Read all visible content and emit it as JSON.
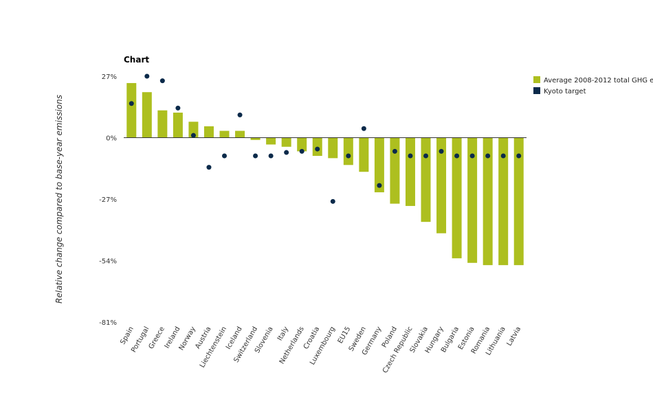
{
  "chart_data": {
    "type": "bar",
    "title": "Chart",
    "ylabel": "Relative change compared to base-year emissions",
    "xlabel": "",
    "ylim": [
      -81,
      27
    ],
    "yticks": [
      27,
      0,
      -27,
      -54,
      -81
    ],
    "ytick_labels": [
      "27%",
      "0%",
      "-27%",
      "-54%",
      "-81%"
    ],
    "categories": [
      "Spain",
      "Portugal",
      "Greece",
      "Ireland",
      "Norway",
      "Austria",
      "Liechtenstein",
      "Iceland",
      "Switzerland",
      "Slovenia",
      "Italy",
      "Netherlands",
      "Croatia",
      "Luxembourg",
      "EU15",
      "Sweden",
      "Germany",
      "Poland",
      "Czech Republic",
      "Slovakia",
      "Hungary",
      "Bulgaria",
      "Estonia",
      "Romania",
      "Lithuania",
      "Latvia"
    ],
    "series": [
      {
        "name": "Average 2008-2012 total GHG e",
        "kind": "bar",
        "color": "#adbf1f",
        "values": [
          24,
          20,
          12,
          11,
          7,
          5,
          3,
          3,
          -1,
          -3,
          -4,
          -6,
          -8,
          -9,
          -12,
          -15,
          -24,
          -29,
          -30,
          -37,
          -42,
          -53,
          -55,
          -56,
          -56,
          -56
        ]
      },
      {
        "name": "Kyoto target",
        "kind": "point",
        "color": "#0b2a4a",
        "values": [
          15,
          27,
          25,
          13,
          1,
          -13,
          -8,
          10,
          -8,
          -8,
          -6.5,
          -6,
          -5,
          -28,
          -8,
          4,
          -21,
          -6,
          -8,
          -8,
          -6,
          -8,
          -8,
          -8,
          -8,
          -8
        ]
      }
    ],
    "grid": false,
    "legend_position": "top-right"
  }
}
